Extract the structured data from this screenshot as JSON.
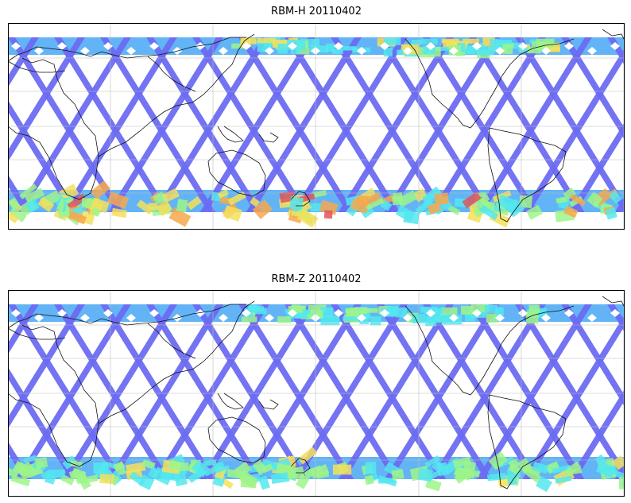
{
  "panels": [
    {
      "title": "RBM-H 20110402",
      "colors": {
        "low": "#6b6bf2",
        "mid": "#62b4f6",
        "cyan": "#54e8ee",
        "green": "#9ef58a",
        "yellow": "#f4e05c",
        "orange": "#f6a84e",
        "red": "#e2545c"
      },
      "south_band_intensity": 0.85,
      "north_band_intensity": 0.55
    },
    {
      "title": "RBM-Z 20110402",
      "colors": {
        "low": "#6b6bf2",
        "mid": "#62b4f6",
        "cyan": "#54e8ee",
        "green": "#9ef58a",
        "yellow": "#f4e05c",
        "orange": "#f6a84e",
        "red": "#e2545c"
      },
      "south_band_intensity": 0.45,
      "north_band_intensity": 0.3
    }
  ]
}
